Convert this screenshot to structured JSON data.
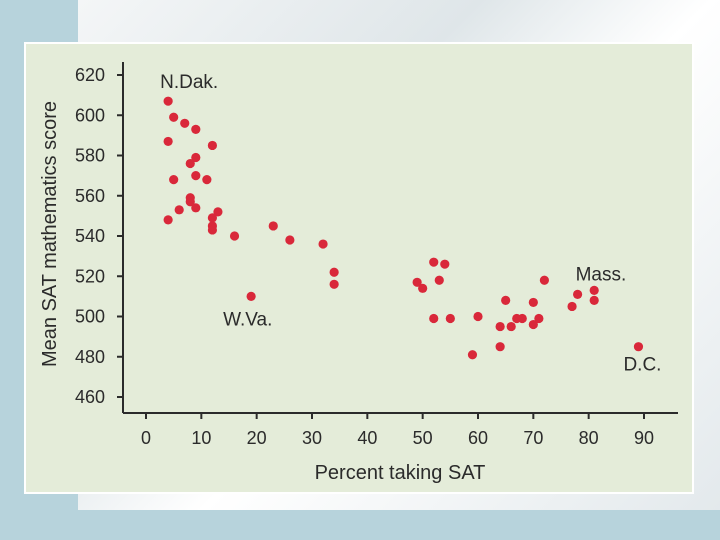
{
  "chart_data": {
    "type": "scatter",
    "title": "",
    "xlabel": "Percent taking SAT",
    "ylabel": "Mean SAT mathematics score",
    "xlim": [
      -2,
      95
    ],
    "ylim": [
      455,
      625
    ],
    "x_ticks": [
      0,
      10,
      20,
      30,
      40,
      50,
      60,
      70,
      80,
      90
    ],
    "y_ticks": [
      460,
      480,
      500,
      520,
      540,
      560,
      580,
      600,
      620
    ],
    "grid": false,
    "point_color": "#d9283a",
    "plot_background": "#e4ecd9",
    "annotations": [
      {
        "text": "N.Dak.",
        "x": 4,
        "y": 607
      },
      {
        "text": "W.Va.",
        "x": 19,
        "y": 510
      },
      {
        "text": "Mass.",
        "x": 78,
        "y": 511
      },
      {
        "text": "D.C.",
        "x": 89,
        "y": 485
      }
    ],
    "series": [
      {
        "points": [
          [
            4,
            607
          ],
          [
            4,
            587
          ],
          [
            4,
            548
          ],
          [
            5,
            599
          ],
          [
            5,
            568
          ],
          [
            6,
            553
          ],
          [
            7,
            596
          ],
          [
            8,
            576
          ],
          [
            8,
            559
          ],
          [
            8,
            557
          ],
          [
            9,
            593
          ],
          [
            9,
            579
          ],
          [
            9,
            570
          ],
          [
            9,
            554
          ],
          [
            11,
            568
          ],
          [
            12,
            585
          ],
          [
            12,
            549
          ],
          [
            12,
            545
          ],
          [
            12,
            543
          ],
          [
            13,
            552
          ],
          [
            16,
            540
          ],
          [
            19,
            510
          ],
          [
            23,
            545
          ],
          [
            26,
            538
          ],
          [
            32,
            536
          ],
          [
            34,
            522
          ],
          [
            34,
            516
          ],
          [
            49,
            517
          ],
          [
            50,
            514
          ],
          [
            52,
            527
          ],
          [
            52,
            499
          ],
          [
            53,
            518
          ],
          [
            54,
            526
          ],
          [
            55,
            499
          ],
          [
            59,
            481
          ],
          [
            60,
            500
          ],
          [
            64,
            495
          ],
          [
            64,
            485
          ],
          [
            65,
            508
          ],
          [
            66,
            495
          ],
          [
            67,
            499
          ],
          [
            68,
            499
          ],
          [
            70,
            507
          ],
          [
            70,
            496
          ],
          [
            71,
            499
          ],
          [
            72,
            518
          ],
          [
            77,
            505
          ],
          [
            78,
            511
          ],
          [
            81,
            513
          ],
          [
            81,
            508
          ],
          [
            89,
            485
          ]
        ]
      }
    ]
  }
}
